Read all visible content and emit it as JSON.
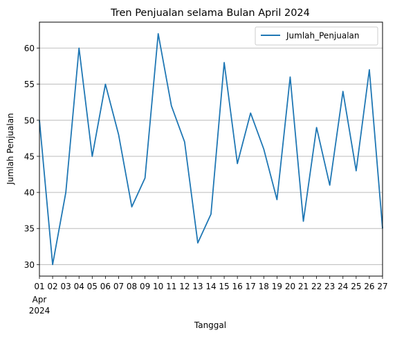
{
  "chart_data": {
    "type": "line",
    "title": "Tren Penjualan selama Bulan April 2024",
    "xlabel": "Tanggal",
    "ylabel": "Jumlah Penjualan",
    "x": [
      "01",
      "02",
      "03",
      "04",
      "05",
      "06",
      "07",
      "08",
      "09",
      "10",
      "11",
      "12",
      "13",
      "14",
      "15",
      "16",
      "17",
      "18",
      "19",
      "20",
      "21",
      "22",
      "23",
      "24",
      "25",
      "26",
      "27"
    ],
    "x_first_sublabels": [
      "Apr",
      "2024"
    ],
    "series": [
      {
        "name": "Jumlah_Penjualan",
        "color": "#1f77b4",
        "values": [
          50,
          30,
          40,
          60,
          45,
          55,
          48,
          38,
          42,
          62,
          52,
          47,
          33,
          37,
          58,
          44,
          51,
          46,
          39,
          56,
          36,
          49,
          41,
          54,
          43,
          57,
          35
        ]
      }
    ],
    "ylim": [
      28.4,
      63.6
    ],
    "yticks": [
      30,
      35,
      40,
      45,
      50,
      55,
      60
    ],
    "grid": "y-only",
    "legend": "top-right"
  }
}
